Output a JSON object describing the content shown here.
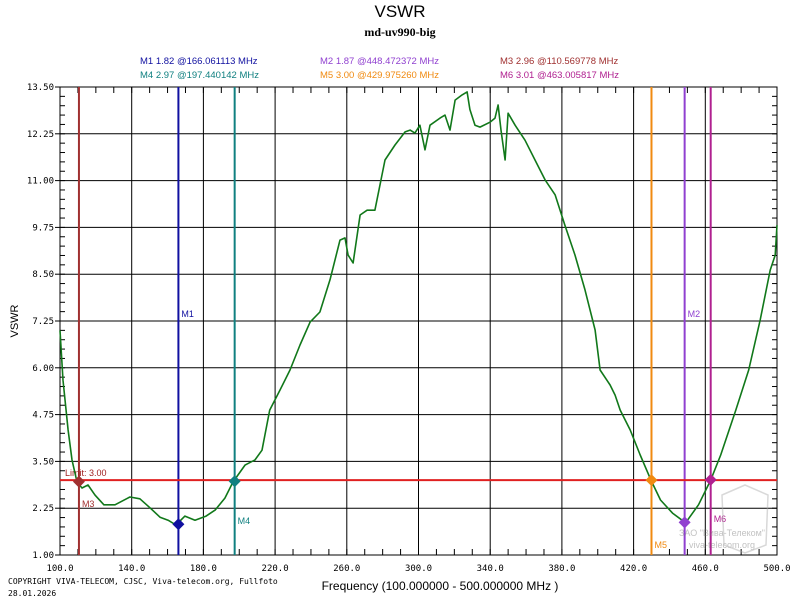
{
  "chart_data": {
    "type": "line",
    "title": "VSWR",
    "subtitle": "md-uv990-big",
    "xlabel": "Frequency (100.000000 - 500.000000 MHz )",
    "ylabel": "VSWR",
    "xlim": [
      100,
      500
    ],
    "ylim": [
      1.0,
      13.5
    ],
    "grid": true,
    "x_ticks": [
      "100.0",
      "140.0",
      "180.0",
      "220.0",
      "260.0",
      "300.0",
      "340.0",
      "380.0",
      "420.0",
      "460.0",
      "500.0"
    ],
    "y_ticks": [
      "1.00",
      "2.25",
      "3.50",
      "4.75",
      "6.00",
      "7.25",
      "8.50",
      "9.75",
      "11.00",
      "12.25",
      "13.50"
    ],
    "limit": {
      "label": "Limit: 3.00",
      "value": 3.0,
      "color": "#e02020"
    },
    "trace_color": "#11781a",
    "series": [
      {
        "x": [
          100,
          101.7,
          104.5,
          106.7,
          109.5,
          112.3,
          115.6,
          119.5,
          124.5,
          130.7,
          139,
          144.6,
          150.2,
          155.8,
          160.3,
          164.7,
          169.7,
          175.3,
          181.5,
          186.5,
          192,
          196.5,
          203.2,
          208.8,
          212.7,
          217,
          222.7,
          228.3,
          233.9,
          239.5,
          245,
          250.6,
          256.2,
          259,
          260.7,
          263.5,
          267.4,
          271.3,
          275.7,
          281.3,
          286.9,
          292.5,
          295.3,
          298,
          300.8,
          303.6,
          306.4,
          312,
          314.8,
          317.6,
          320.4,
          324.3,
          327.1,
          328.7,
          331.5,
          334.3,
          339.9,
          342.7,
          344.4,
          346,
          348.3,
          350,
          353.9,
          359.4,
          365,
          370.6,
          376.2,
          381.7,
          387.3,
          392.9,
          398.5,
          401.3,
          406.9,
          409.7,
          412.5,
          418.1,
          423.7,
          429.9,
          435,
          441.7,
          449,
          456.2,
          463,
          468.6,
          477,
          484.2,
          490.6,
          496.2,
          499,
          500
        ],
        "y": [
          7.0,
          5.67,
          4.34,
          3.54,
          2.95,
          2.79,
          2.87,
          2.6,
          2.34,
          2.34,
          2.55,
          2.5,
          2.26,
          2.01,
          1.93,
          1.8,
          2.04,
          1.93,
          2.04,
          2.2,
          2.52,
          2.95,
          3.4,
          3.54,
          3.8,
          4.87,
          5.4,
          5.94,
          6.61,
          7.22,
          7.49,
          8.35,
          9.41,
          9.47,
          9.01,
          8.8,
          10.08,
          10.21,
          10.21,
          11.55,
          11.95,
          12.3,
          12.35,
          12.27,
          12.48,
          11.82,
          12.48,
          12.67,
          12.75,
          12.35,
          13.15,
          13.29,
          13.37,
          12.9,
          12.48,
          12.43,
          12.56,
          12.67,
          13.02,
          12.35,
          11.55,
          12.8,
          12.48,
          12.08,
          11.55,
          11.02,
          10.62,
          9.81,
          9.01,
          8.08,
          7.01,
          5.94,
          5.54,
          5.27,
          4.87,
          4.34,
          3.67,
          2.98,
          2.47,
          2.12,
          1.86,
          2.34,
          3.0,
          3.67,
          4.87,
          5.94,
          7.28,
          8.61,
          9.01,
          9.81
        ]
      }
    ],
    "markers": [
      {
        "name": "M1",
        "value": 1.82,
        "freq": 166.061113,
        "text": "M1   1.82 @166.061113 MHz",
        "color": "#1010a0",
        "label_pos": "top"
      },
      {
        "name": "M2",
        "value": 1.87,
        "freq": 448.472372,
        "text": "M2   1.87 @448.472372 MHz",
        "color": "#9040d0",
        "label_pos": "top"
      },
      {
        "name": "M3",
        "value": 2.96,
        "freq": 110.569778,
        "text": "M3   2.96 @110.569778 MHz",
        "color": "#a03030",
        "label_pos": "bottom"
      },
      {
        "name": "M4",
        "value": 2.97,
        "freq": 197.440142,
        "text": "M4   2.97 @197.440142 MHz",
        "color": "#108080",
        "label_pos": "bottom"
      },
      {
        "name": "M5",
        "value": 3.0,
        "freq": 429.97526,
        "text": "M5   3.00 @429.975260 MHz",
        "color": "#f08a10",
        "label_pos": "bottom"
      },
      {
        "name": "M6",
        "value": 3.01,
        "freq": 463.005817,
        "text": "M6   3.01 @463.005817 MHz",
        "color": "#b02090",
        "label_pos": "bottom"
      }
    ]
  },
  "footer": {
    "copyright": "COPYRIGHT VIVA-TELECOM, CJSC, Viva-telecom.org, Fullfoto",
    "date": "28.01.2026"
  },
  "watermark": {
    "company": "ЗАО \"Вива-Телеком\"",
    "site": "viva-telecom.org"
  }
}
